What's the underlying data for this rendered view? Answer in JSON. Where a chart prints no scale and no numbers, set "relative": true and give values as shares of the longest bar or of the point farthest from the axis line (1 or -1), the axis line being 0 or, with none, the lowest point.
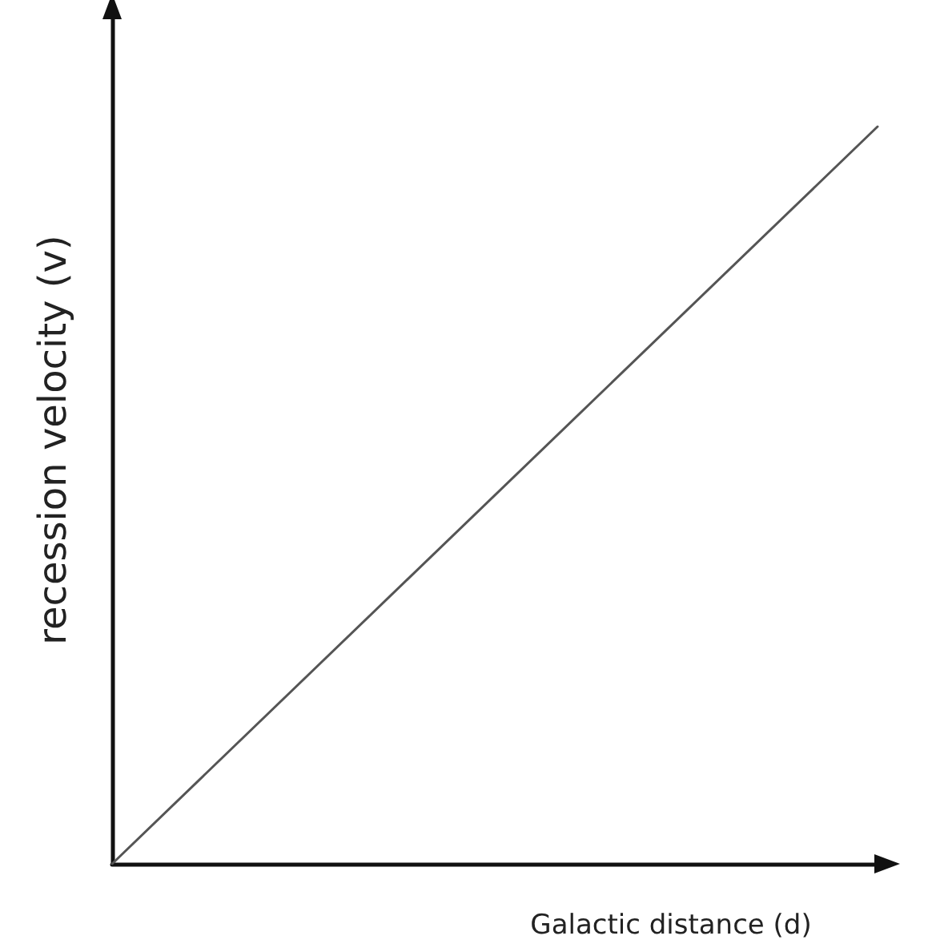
{
  "chart_data": {
    "type": "line",
    "relative": true,
    "xlabel": "Galactic distance (d)",
    "ylabel": "recession velocity (v)",
    "categories": [
      null,
      null
    ],
    "series": [
      {
        "color": "#555555",
        "values": [
          0,
          1
        ]
      }
    ],
    "grid": false,
    "marker": "none",
    "line_style": "solid"
  }
}
